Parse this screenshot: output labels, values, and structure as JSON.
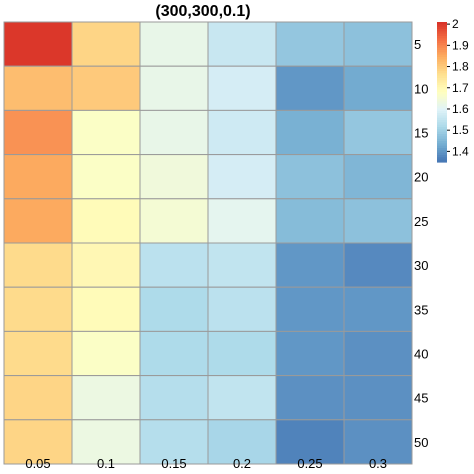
{
  "chart_data": {
    "type": "heatmap",
    "title": "(300,300,0.1)",
    "x_categories": [
      "0.05",
      "0.1",
      "0.15",
      "0.2",
      "0.25",
      "0.3"
    ],
    "y_categories": [
      "5",
      "10",
      "15",
      "20",
      "25",
      "30",
      "35",
      "40",
      "45",
      "50"
    ],
    "values": [
      [
        2.0,
        1.78,
        1.62,
        1.56,
        1.48,
        1.47
      ],
      [
        1.82,
        1.8,
        1.62,
        1.58,
        1.4,
        1.43
      ],
      [
        1.88,
        1.67,
        1.62,
        1.57,
        1.44,
        1.48
      ],
      [
        1.85,
        1.67,
        1.64,
        1.58,
        1.47,
        1.45
      ],
      [
        1.85,
        1.69,
        1.65,
        1.61,
        1.46,
        1.47
      ],
      [
        1.77,
        1.7,
        1.54,
        1.55,
        1.4,
        1.38
      ],
      [
        1.77,
        1.69,
        1.52,
        1.54,
        1.4,
        1.4
      ],
      [
        1.77,
        1.67,
        1.52,
        1.52,
        1.4,
        1.39
      ],
      [
        1.78,
        1.63,
        1.53,
        1.55,
        1.39,
        1.39
      ],
      [
        1.78,
        1.63,
        1.53,
        1.51,
        1.37,
        1.39
      ]
    ],
    "legend": {
      "ticks": [
        1.4,
        1.5,
        1.6,
        1.7,
        1.8,
        1.9,
        2
      ],
      "tick_labels": [
        "1.4",
        "1.5",
        "1.6",
        "1.7",
        "1.8",
        "1.9",
        "2"
      ],
      "min": 1.35,
      "max": 2.01,
      "position": "right"
    },
    "colormap": [
      "#4575B4",
      "#74ADD1",
      "#ABD9E9",
      "#E0F3F8",
      "#FFFFBF",
      "#FEE090",
      "#FDAE61",
      "#F46D43",
      "#D73027"
    ],
    "cell_border_color": "#9a9a9a",
    "grid": false
  }
}
